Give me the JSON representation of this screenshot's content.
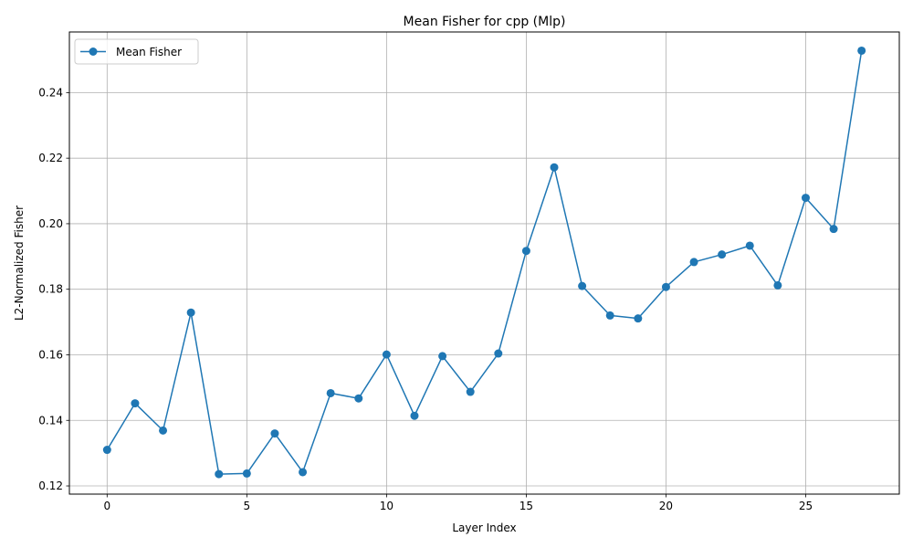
{
  "chart_data": {
    "type": "line",
    "title": "Mean Fisher for cpp (Mlp)",
    "xlabel": "Layer Index",
    "ylabel": "L2-Normalized Fisher",
    "xlim": [
      -1.35,
      28.35
    ],
    "ylim": [
      0.1175,
      0.2585
    ],
    "xticks": [
      0,
      5,
      10,
      15,
      20,
      25
    ],
    "yticks": [
      0.12,
      0.14,
      0.16,
      0.18,
      0.2,
      0.22,
      0.24
    ],
    "ytick_labels": [
      "0.12",
      "0.14",
      "0.16",
      "0.18",
      "0.20",
      "0.22",
      "0.24"
    ],
    "grid": true,
    "legend_position": "top-left",
    "color": "#1f77b4",
    "series": [
      {
        "name": "Mean Fisher",
        "x": [
          0,
          1,
          2,
          3,
          4,
          5,
          6,
          7,
          8,
          9,
          10,
          11,
          12,
          13,
          14,
          15,
          16,
          17,
          18,
          19,
          20,
          21,
          22,
          23,
          24,
          25,
          26,
          27
        ],
        "values": [
          0.131,
          0.1452,
          0.1369,
          0.1729,
          0.1236,
          0.1238,
          0.136,
          0.1242,
          0.1483,
          0.1467,
          0.1601,
          0.1414,
          0.1596,
          0.1487,
          0.1604,
          0.1917,
          0.2172,
          0.181,
          0.172,
          0.1711,
          0.1807,
          0.1883,
          0.1906,
          0.1933,
          0.1812,
          0.2079,
          0.1984,
          0.2528
        ]
      }
    ]
  }
}
